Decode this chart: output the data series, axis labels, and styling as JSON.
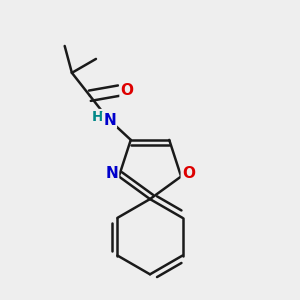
{
  "background_color": "#eeeeee",
  "bond_color": "#1a1a1a",
  "bond_width": 1.8,
  "atom_colors": {
    "O": "#dd0000",
    "N": "#0000cc",
    "H": "#008888",
    "C": "#1a1a1a"
  },
  "font_size_atoms": 11,
  "font_size_h": 10,
  "xlim": [
    0.05,
    0.95
  ],
  "ylim": [
    0.05,
    0.95
  ]
}
